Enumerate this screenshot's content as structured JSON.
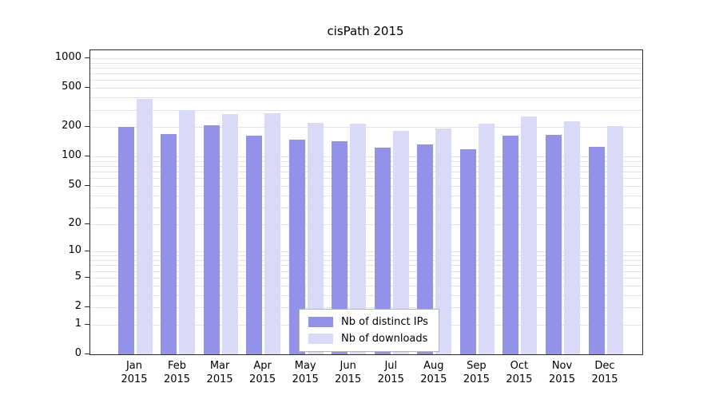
{
  "chart_data": {
    "type": "bar",
    "title": "cisPath 2015",
    "xlabel": "",
    "ylabel": "",
    "yscale": "log1p",
    "ylim": [
      0,
      1000
    ],
    "yticks": [
      0,
      1,
      2,
      5,
      10,
      20,
      50,
      100,
      200,
      500,
      1000
    ],
    "grid_values": [
      1,
      2,
      3,
      4,
      5,
      6,
      7,
      8,
      9,
      10,
      20,
      30,
      40,
      50,
      60,
      70,
      80,
      90,
      100,
      200,
      300,
      400,
      500,
      600,
      700,
      800,
      900,
      1000
    ],
    "grid": "minor-horizontal",
    "legend_position": "inside-bottom-center",
    "categories": [
      {
        "month": "Jan",
        "year": "2015"
      },
      {
        "month": "Feb",
        "year": "2015"
      },
      {
        "month": "Mar",
        "year": "2015"
      },
      {
        "month": "Apr",
        "year": "2015"
      },
      {
        "month": "May",
        "year": "2015"
      },
      {
        "month": "Jun",
        "year": "2015"
      },
      {
        "month": "Jul",
        "year": "2015"
      },
      {
        "month": "Aug",
        "year": "2015"
      },
      {
        "month": "Sep",
        "year": "2015"
      },
      {
        "month": "Oct",
        "year": "2015"
      },
      {
        "month": "Nov",
        "year": "2015"
      },
      {
        "month": "Dec",
        "year": "2015"
      }
    ],
    "series": [
      {
        "name": "Nb of distinct IPs",
        "color": "#9292e8",
        "values": [
          201,
          170,
          209,
          163,
          150,
          143,
          124,
          132,
          119,
          165,
          166,
          125
        ]
      },
      {
        "name": "Nb of downloads",
        "color": "#d9d9f8",
        "values": [
          388,
          298,
          272,
          276,
          221,
          217,
          184,
          194,
          216,
          258,
          230,
          205
        ]
      }
    ]
  }
}
